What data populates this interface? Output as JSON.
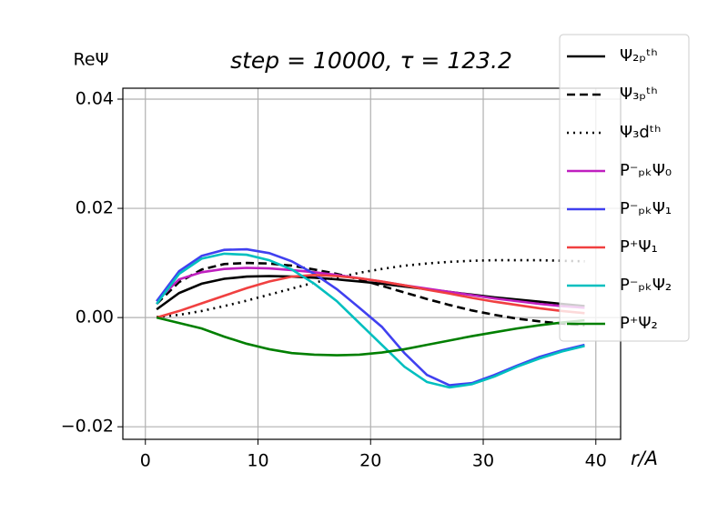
{
  "chart_data": {
    "type": "line",
    "title": "step = 10000, τ = 123.2",
    "y_label": "ReΨ",
    "x_label": "r/A",
    "x": [
      1,
      3,
      5,
      7,
      9,
      11,
      13,
      15,
      17,
      19,
      21,
      23,
      25,
      27,
      29,
      31,
      33,
      35,
      37,
      39
    ],
    "xlim": [
      -2,
      42.2
    ],
    "xticks": [
      0,
      10,
      20,
      30,
      40
    ],
    "ylim": [
      -0.0223,
      0.042
    ],
    "yticks": [
      {
        "value": -0.02,
        "label": "−0.02"
      },
      {
        "value": 0,
        "label": "0.00"
      },
      0.02,
      0.04
    ],
    "grid": true,
    "legend": "upper right",
    "series": [
      {
        "name": "Ψ₂ₚᵗʰ",
        "color": "#000000",
        "style": "solid",
        "values": [
          0.0015,
          0.0045,
          0.0062,
          0.0071,
          0.0075,
          0.0076,
          0.0075,
          0.0073,
          0.007,
          0.0066,
          0.0062,
          0.0057,
          0.0052,
          0.0047,
          0.0042,
          0.0037,
          0.0033,
          0.0029,
          0.0025,
          0.0021
        ]
      },
      {
        "name": "Ψ₃ₚᵗʰ",
        "color": "#000000",
        "style": "dashed",
        "values": [
          0.0025,
          0.0065,
          0.0088,
          0.0098,
          0.01,
          0.0099,
          0.0095,
          0.0088,
          0.008,
          0.007,
          0.0058,
          0.0046,
          0.0034,
          0.0023,
          0.0013,
          0.0005,
          -0.0002,
          -0.0007,
          -0.0011,
          -0.0014
        ]
      },
      {
        "name": "Ψ₃dᵗʰ",
        "color": "#000000",
        "style": "dotted",
        "values": [
          0.0001,
          0.0005,
          0.0012,
          0.0021,
          0.0031,
          0.0042,
          0.0053,
          0.0064,
          0.0073,
          0.0082,
          0.0089,
          0.0095,
          0.0099,
          0.0102,
          0.0104,
          0.0105,
          0.0105,
          0.0105,
          0.0104,
          0.0103
        ]
      },
      {
        "name": "P⁻ₚₖΨ₀",
        "color": "#bf1fbf",
        "style": "solid",
        "values": [
          0.003,
          0.007,
          0.0083,
          0.0089,
          0.0091,
          0.009,
          0.0087,
          0.0083,
          0.0078,
          0.0072,
          0.0066,
          0.0059,
          0.0053,
          0.0047,
          0.0041,
          0.0035,
          0.003,
          0.0025,
          0.0021,
          0.0018
        ]
      },
      {
        "name": "P⁻ₚₖΨ₁",
        "color": "#4040f0",
        "style": "solid",
        "values": [
          0.003,
          0.0085,
          0.0113,
          0.0124,
          0.0125,
          0.0118,
          0.0103,
          0.008,
          0.0052,
          0.0018,
          -0.0017,
          -0.0065,
          -0.0105,
          -0.0124,
          -0.012,
          -0.0105,
          -0.0088,
          -0.0072,
          -0.006,
          -0.005
        ]
      },
      {
        "name": "P⁺Ψ₁",
        "color": "#f04040",
        "style": "solid",
        "values": [
          0,
          0.0012,
          0.0026,
          0.004,
          0.0054,
          0.0066,
          0.0075,
          0.0078,
          0.0076,
          0.0072,
          0.0066,
          0.0059,
          0.0051,
          0.0044,
          0.0036,
          0.0029,
          0.0023,
          0.0017,
          0.0012,
          0.0008
        ]
      },
      {
        "name": "P⁻ₚₖΨ₂",
        "color": "#00bfbf",
        "style": "solid",
        "values": [
          0.0025,
          0.008,
          0.0108,
          0.0117,
          0.0115,
          0.0105,
          0.0088,
          0.0062,
          0.003,
          -0.001,
          -0.005,
          -0.009,
          -0.0118,
          -0.0128,
          -0.0122,
          -0.0108,
          -0.009,
          -0.0075,
          -0.0062,
          -0.0052
        ]
      },
      {
        "name": "P⁺Ψ₂",
        "color": "#007f00",
        "style": "solid",
        "values": [
          0,
          -0.001,
          -0.002,
          -0.0035,
          -0.0048,
          -0.0058,
          -0.0065,
          -0.0068,
          -0.0069,
          -0.0068,
          -0.0064,
          -0.0058,
          -0.005,
          -0.0042,
          -0.0034,
          -0.0027,
          -0.002,
          -0.0014,
          -0.0009,
          -0.0005
        ]
      }
    ]
  }
}
